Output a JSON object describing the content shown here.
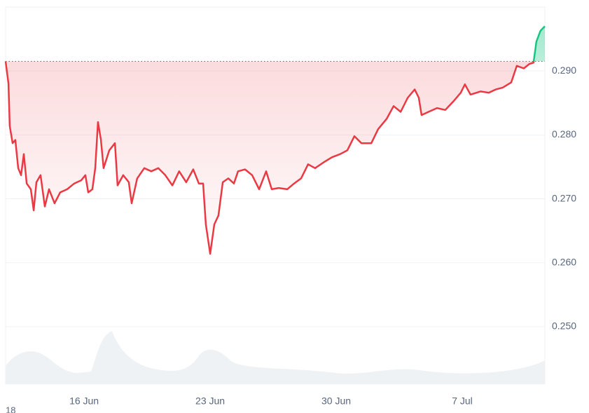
{
  "chart_data": {
    "type": "line",
    "x": [
      11.64,
      11.8,
      11.87,
      12.03,
      12.18,
      12.34,
      12.5,
      12.65,
      12.81,
      13.04,
      13.2,
      13.35,
      13.58,
      13.82,
      14.05,
      14.36,
      14.67,
      15.06,
      15.45,
      15.84,
      16.07,
      16.23,
      16.46,
      16.62,
      16.77,
      16.93,
      17.08,
      17.4,
      17.71,
      17.86,
      18.17,
      18.48,
      18.64,
      18.95,
      19.34,
      19.73,
      20.12,
      20.51,
      20.9,
      21.28,
      21.67,
      22.06,
      22.37,
      22.61,
      22.76,
      23.0,
      23.23,
      23.46,
      23.7,
      24.01,
      24.32,
      24.55,
      24.94,
      25.33,
      25.72,
      26.11,
      26.42,
      26.81,
      27.28,
      27.66,
      28.05,
      28.44,
      28.83,
      29.3,
      29.76,
      30.23,
      30.62,
      31.01,
      31.4,
      31.95,
      32.33,
      32.8,
      33.19,
      33.58,
      33.97,
      34.36,
      34.59,
      34.74,
      35.13,
      35.6,
      36.06,
      36.53,
      36.92,
      37.15,
      37.46,
      38.01,
      38.47,
      38.86,
      39.25,
      39.72,
      40.03,
      40.42,
      40.73,
      40.96,
      41.12,
      41.35,
      41.59
    ],
    "series": [
      {
        "values": [
          0.2915,
          0.288,
          0.2814,
          0.2787,
          0.2792,
          0.2748,
          0.2737,
          0.277,
          0.2724,
          0.2715,
          0.2682,
          0.2726,
          0.2737,
          0.2688,
          0.2715,
          0.2693,
          0.271,
          0.2715,
          0.2724,
          0.2729,
          0.2737,
          0.271,
          0.2715,
          0.2748,
          0.282,
          0.2793,
          0.2748,
          0.2776,
          0.2787,
          0.2721,
          0.2737,
          0.2726,
          0.2693,
          0.2732,
          0.2748,
          0.2743,
          0.2748,
          0.2737,
          0.2721,
          0.2743,
          0.2726,
          0.2746,
          0.2724,
          0.2724,
          0.266,
          0.2614,
          0.266,
          0.2674,
          0.2726,
          0.2732,
          0.2724,
          0.2743,
          0.2746,
          0.2737,
          0.2715,
          0.2743,
          0.2715,
          0.2717,
          0.2715,
          0.2724,
          0.2732,
          0.2754,
          0.2748,
          0.2757,
          0.2765,
          0.277,
          0.2776,
          0.2798,
          0.2787,
          0.2787,
          0.2809,
          0.2825,
          0.2845,
          0.2836,
          0.2858,
          0.2871,
          0.2858,
          0.2831,
          0.2836,
          0.2842,
          0.2839,
          0.2853,
          0.2866,
          0.2879,
          0.2863,
          0.2868,
          0.2866,
          0.2871,
          0.2874,
          0.2882,
          0.2908,
          0.2904,
          0.2911,
          0.2913,
          0.2946,
          0.2963,
          0.297
        ]
      }
    ],
    "baseline": 0.2915,
    "up_color": "#16c784",
    "down_color": "#ea3943",
    "xlim": [
      11.64,
      41.59
    ],
    "xticks": [
      {
        "value": 16,
        "label": "16 Jun"
      },
      {
        "value": 23,
        "label": "23 Jun"
      },
      {
        "value": 30,
        "label": "30 Jun"
      },
      {
        "value": 37,
        "label": "7 Jul"
      }
    ],
    "ylim": [
      0.241,
      0.3
    ],
    "yticks": [
      {
        "value": 0.25,
        "label": "0.250"
      },
      {
        "value": 0.26,
        "label": "0.260"
      },
      {
        "value": 0.27,
        "label": "0.270"
      },
      {
        "value": 0.28,
        "label": "0.280"
      },
      {
        "value": 0.29,
        "label": "0.290"
      }
    ],
    "grid": true,
    "corner_label": "18"
  }
}
